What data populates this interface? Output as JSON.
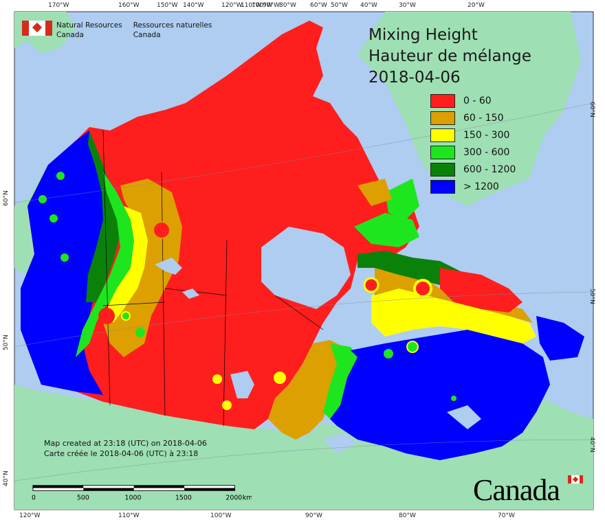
{
  "map": {
    "title_en": "Mixing Height",
    "title_fr": "Hauteur de mélange",
    "date": "2018-04-06",
    "agency_en_line1": "Natural Resources",
    "agency_en_line2": "Canada",
    "agency_fr_line1": "Ressources naturelles",
    "agency_fr_line2": "Canada",
    "created_en": "Map created at 23:18 (UTC) on 2018-04-06",
    "created_fr": "Carte créée le 2018-04-06 (UTC) à 23:18",
    "wordmark": "Canada"
  },
  "legend": [
    {
      "label": "0 - 60",
      "color": "#ff1e1e"
    },
    {
      "label": "60 - 150",
      "color": "#dca000"
    },
    {
      "label": "150 - 300",
      "color": "#ffff00"
    },
    {
      "label": "300 - 600",
      "color": "#1ee61e"
    },
    {
      "label": "600 - 1200",
      "color": "#0a820a"
    },
    {
      "label": "> 1200",
      "color": "#0000ff"
    }
  ],
  "top_ticks": [
    "170°W",
    "160°W",
    "150°W",
    "140°W",
    "120°W",
    "110°W",
    "100°W",
    "90°W",
    "80°W",
    "60°W",
    "50°W",
    "40°W",
    "30°W",
    "20°W"
  ],
  "bottom_ticks": [
    "120°W",
    "110°W",
    "100°W",
    "90°W",
    "80°W",
    "70°W"
  ],
  "left_ticks": [
    "60°N",
    "50°N",
    "40°N"
  ],
  "right_ticks": [
    "60°N",
    "50°N",
    "40°N"
  ],
  "scale": {
    "labels": [
      "0",
      "500",
      "1000",
      "1500",
      "2000"
    ],
    "unit": "km"
  },
  "colors": {
    "ocean": "#aecdf0",
    "land_other": "#9edfb4",
    "greenland": "#9edfb4"
  }
}
